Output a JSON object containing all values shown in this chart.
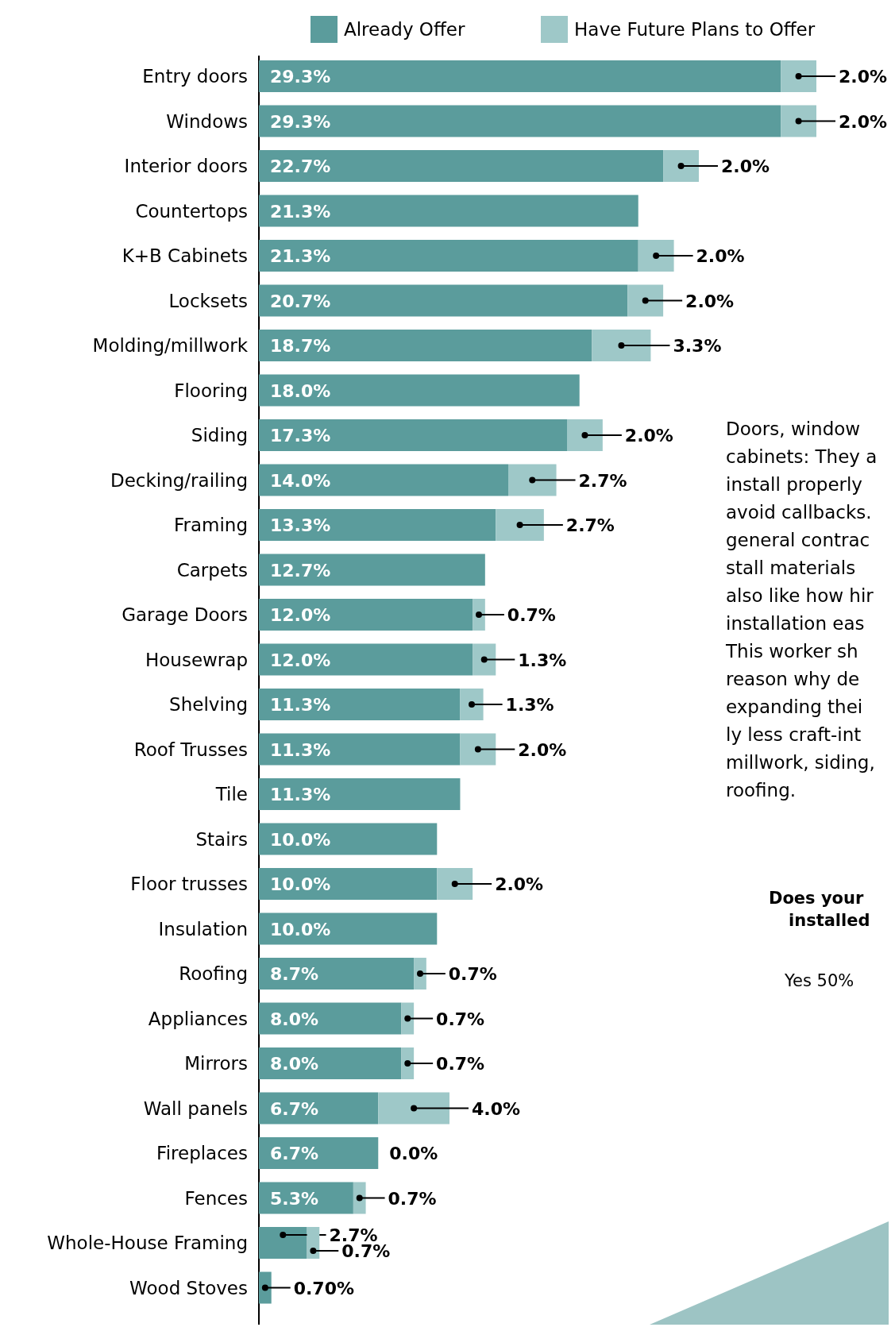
{
  "chart_data": {
    "type": "bar",
    "orientation": "horizontal",
    "stacked": true,
    "legend": "top",
    "data_labels": true,
    "categories": [
      "Entry doors",
      "Windows",
      "Interior doors",
      "Countertops",
      "K+B Cabinets",
      "Locksets",
      "Molding/millwork",
      "Flooring",
      "Siding",
      "Decking/railing",
      "Framing",
      "Carpets",
      "Garage Doors",
      "Housewrap",
      "Shelving",
      "Roof Trusses",
      "Tile",
      "Stairs",
      "Floor trusses",
      "Insulation",
      "Roofing",
      "Appliances",
      "Mirrors",
      "Wall panels",
      "Fireplaces",
      "Fences",
      "Whole-House Framing",
      "Wood Stoves"
    ],
    "series": [
      {
        "name": "Already Offer",
        "color": "#5b9c9c",
        "values": [
          29.3,
          29.3,
          22.7,
          21.3,
          21.3,
          20.7,
          18.7,
          18.0,
          17.3,
          14.0,
          13.3,
          12.7,
          12.0,
          12.0,
          11.3,
          11.3,
          11.3,
          10.0,
          10.0,
          10.0,
          8.7,
          8.0,
          8.0,
          6.7,
          6.7,
          5.3,
          2.7,
          0.7
        ],
        "value_labels": [
          "29.3%",
          "29.3%",
          "22.7%",
          "21.3%",
          "21.3%",
          "20.7%",
          "18.7%",
          "18.0%",
          "17.3%",
          "14.0%",
          "13.3%",
          "12.7%",
          "12.0%",
          "12.0%",
          "11.3%",
          "11.3%",
          "11.3%",
          "10.0%",
          "10.0%",
          "10.0%",
          "8.7%",
          "8.0%",
          "8.0%",
          "6.7%",
          "6.7%",
          "5.3%",
          "2.7%",
          "0.70%"
        ]
      },
      {
        "name": "Have Future Plans to Offer",
        "color": "#9ec8c8",
        "values": [
          2.0,
          2.0,
          2.0,
          null,
          2.0,
          2.0,
          3.3,
          null,
          2.0,
          2.7,
          2.7,
          null,
          0.7,
          1.3,
          1.3,
          2.0,
          null,
          null,
          2.0,
          null,
          0.7,
          0.7,
          0.7,
          4.0,
          0.0,
          0.7,
          0.7,
          null
        ],
        "value_labels": [
          "2.0%",
          "2.0%",
          "2.0%",
          null,
          "2.0%",
          "2.0%",
          "3.3%",
          null,
          "2.0%",
          "2.7%",
          "2.7%",
          null,
          "0.7%",
          "1.3%",
          "1.3%",
          "2.0%",
          null,
          null,
          "2.0%",
          null,
          "0.7%",
          "0.7%",
          "0.7%",
          "4.0%",
          "0.0%",
          "0.7%",
          "0.7%",
          null
        ]
      }
    ],
    "annotations": [
      "Doors, window",
      "cabinets: They a",
      "install properly",
      "avoid callbacks.",
      "general contrac",
      "stall materials",
      "also like how hir",
      "installation eas",
      "This worker sh",
      "reason why de",
      "expanding thei",
      "ly less craft-int",
      "millwork, siding,",
      "roofing.",
      "Does your",
      "installed",
      "Yes 50%"
    ]
  }
}
